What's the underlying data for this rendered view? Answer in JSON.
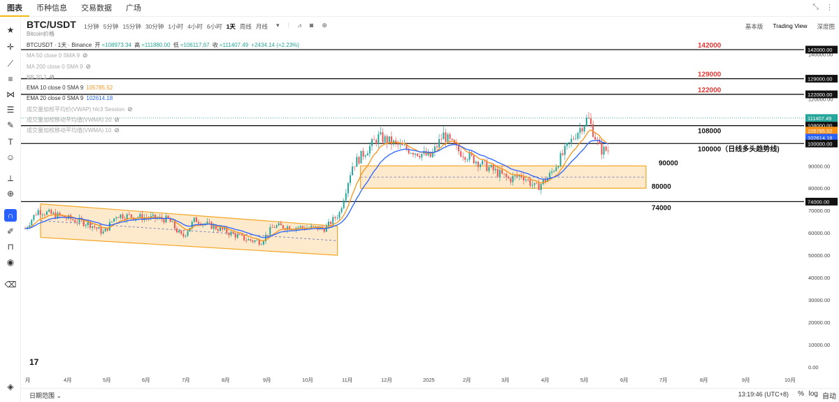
{
  "topnav": {
    "tabs": [
      "图表",
      "币种信息",
      "交易数据",
      "广场"
    ]
  },
  "header": {
    "pair": "BTC/USDT",
    "subtitle": "Bitcoin价格",
    "intervals": [
      "1分钟",
      "5分钟",
      "15分钟",
      "30分钟",
      "1小时",
      "4小时",
      "6小时",
      "1天",
      "周线",
      "月线"
    ],
    "active_interval": "1天",
    "views": [
      "基本版",
      "Trading View",
      "深度图"
    ],
    "active_view": "Trading View"
  },
  "legend": {
    "symbol": "BTCUSDT · 1天 · Binance",
    "open_label": "开",
    "open": "=108973.34",
    "high_label": "高",
    "high": "=111880.00",
    "low_label": "低",
    "low": "=106117.67",
    "close_label": "收",
    "close": "=111407.49",
    "change": "+2434.14 (+2.23%)",
    "indicators": [
      {
        "text": "MA 50 close 0 SMA 9",
        "value": "",
        "hidden": true
      },
      {
        "text": "MA 200 close 0 SMA 9",
        "value": "",
        "hidden": true
      },
      {
        "text": "BB 20 2",
        "value": "",
        "hidden": true
      },
      {
        "text": "EMA 10 close 0 SMA 9",
        "value": "105785.52",
        "hidden": false,
        "color": "#f7931a"
      },
      {
        "text": "EMA 20 close 0 SMA 9",
        "value": "102614.18",
        "hidden": false,
        "color": "#2962ff"
      },
      {
        "text": "成交量加权平均价(VWAP) hlc3 Session",
        "value": "",
        "hidden": true
      },
      {
        "text": "成交量加权移动平均值(VWMA) 20",
        "value": "",
        "hidden": true
      },
      {
        "text": "成交量加权移动平均值(VWMA) 10",
        "value": "",
        "hidden": true
      }
    ]
  },
  "price_axis": {
    "ticks": [
      "140000.00",
      "130000.00",
      "120000.00",
      "110000.00",
      "100000.00",
      "90000.00",
      "80000.00",
      "70000.00",
      "60000.00",
      "50000.00",
      "40000.00",
      "30000.00",
      "20000.00",
      "10000.00",
      "0.00"
    ],
    "badges": [
      {
        "label": "142000.00",
        "price": 142000,
        "style": "dark"
      },
      {
        "label": "129000.00",
        "price": 129000,
        "style": "dark"
      },
      {
        "label": "122000.00",
        "price": 122000,
        "style": "dark"
      },
      {
        "label": "111407.49",
        "price": 111407,
        "style": "green"
      },
      {
        "label": "108000.00",
        "price": 108000,
        "style": "dark"
      },
      {
        "label": "105785.52",
        "price": 105785,
        "style": "orange"
      },
      {
        "label": "102614.18",
        "price": 102614,
        "style": "blue"
      },
      {
        "label": "100000.00",
        "price": 100000,
        "style": "dark"
      },
      {
        "label": "74000.00",
        "price": 74000,
        "style": "dark"
      }
    ]
  },
  "time_axis": {
    "labels": [
      "月",
      "4月",
      "5月",
      "6月",
      "7月",
      "8月",
      "9月",
      "10月",
      "11月",
      "12月",
      "2025",
      "2月",
      "3月",
      "4月",
      "5月",
      "6月",
      "7月",
      "8月",
      "9月",
      "10月"
    ]
  },
  "levels": [
    {
      "price": 142000,
      "label": "142000",
      "color": "#e53935"
    },
    {
      "price": 129000,
      "label": "129000",
      "color": "#e53935"
    },
    {
      "price": 122000,
      "label": "122000",
      "color": "#e53935"
    },
    {
      "price": 108000,
      "label": "108000",
      "color": "#111111"
    },
    {
      "price": 100000,
      "label": "100000（日线多头趋势线)",
      "color": "#111111"
    },
    {
      "price": 90000,
      "label": "90000",
      "color": "#111111"
    },
    {
      "price": 80000,
      "label": "80000",
      "color": "#111111"
    },
    {
      "price": 74000,
      "label": "74000",
      "color": "#111111"
    }
  ],
  "chart_data": {
    "type": "candlestick",
    "price_range": [
      0,
      145000
    ],
    "channel_2024": {
      "start": "2024-03",
      "end": "2024-11",
      "upper": [
        73000,
        63000
      ],
      "lower": [
        58000,
        50000
      ]
    },
    "range_box": {
      "start": "2024-11",
      "end": "2025-06",
      "top": 90000,
      "bottom": 80000
    },
    "monthly_path": [
      {
        "t": "2024-03",
        "p": 62000
      },
      {
        "t": "2024-03",
        "p": 70000
      },
      {
        "t": "2024-04",
        "p": 64000
      },
      {
        "t": "2024-05",
        "p": 60000
      },
      {
        "t": "2024-05",
        "p": 68000
      },
      {
        "t": "2024-06",
        "p": 66000
      },
      {
        "t": "2024-07",
        "p": 58000
      },
      {
        "t": "2024-07",
        "p": 66000
      },
      {
        "t": "2024-08",
        "p": 57000
      },
      {
        "t": "2024-09",
        "p": 56000
      },
      {
        "t": "2024-09",
        "p": 63000
      },
      {
        "t": "2024-10",
        "p": 62000
      },
      {
        "t": "2024-11",
        "p": 69000
      },
      {
        "t": "2024-11",
        "p": 90000
      },
      {
        "t": "2024-12",
        "p": 98000
      },
      {
        "t": "2024-12",
        "p": 103000
      },
      {
        "t": "2025-01",
        "p": 94000
      },
      {
        "t": "2025-01",
        "p": 104000
      },
      {
        "t": "2025-02",
        "p": 97000
      },
      {
        "t": "2025-03",
        "p": 84000
      },
      {
        "t": "2025-03",
        "p": 86000
      },
      {
        "t": "2025-04",
        "p": 80000
      },
      {
        "t": "2025-04",
        "p": 85000
      },
      {
        "t": "2025-05",
        "p": 97000
      },
      {
        "t": "2025-05",
        "p": 104000
      },
      {
        "t": "2025-05",
        "p": 111407
      }
    ],
    "colors": {
      "up": "#26a69a",
      "down": "#ef5350",
      "ema10": "#f7931a",
      "ema20": "#2962ff",
      "box": "#fde4bf",
      "box_border": "#f5a623"
    }
  },
  "bottom": {
    "range_label": "日期范围",
    "clock": "13:19:46 (UTC+8)",
    "pct": "%",
    "log": "log",
    "auto": "自动"
  }
}
